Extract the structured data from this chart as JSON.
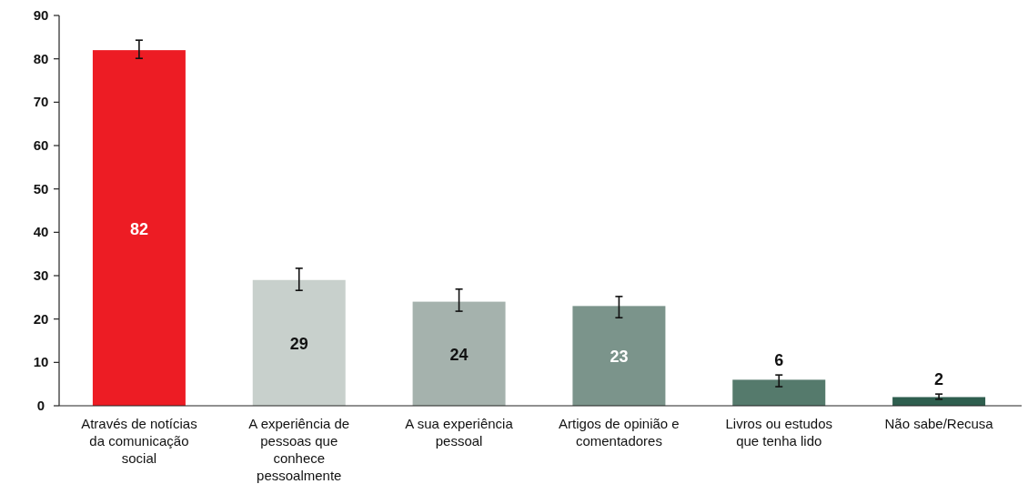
{
  "chart_data": {
    "type": "bar",
    "categories": [
      "Através de notícias da comunicação social",
      "A experiência de pessoas que conhece pessoalmente",
      "A sua experiência pessoal",
      "Artigos de opinião e comentadores",
      "Livros ou estudos que tenha lido",
      "Não sabe/Recusa"
    ],
    "values": [
      82,
      29,
      24,
      23,
      6,
      2
    ],
    "colors": [
      "#ed1c24",
      "#c8d0cc",
      "#a5b2ad",
      "#7b948b",
      "#557a6c",
      "#2e5e4e"
    ],
    "errors": [
      [
        80.1,
        84.3
      ],
      [
        26.6,
        31.7
      ],
      [
        21.8,
        26.9
      ],
      [
        20.3,
        25.2
      ],
      [
        4.4,
        7.1
      ],
      [
        1.5,
        2.7
      ]
    ],
    "ylim": [
      0,
      90
    ],
    "yticks": [
      0,
      10,
      20,
      30,
      40,
      50,
      60,
      70,
      80,
      90
    ],
    "data_labels": true
  }
}
